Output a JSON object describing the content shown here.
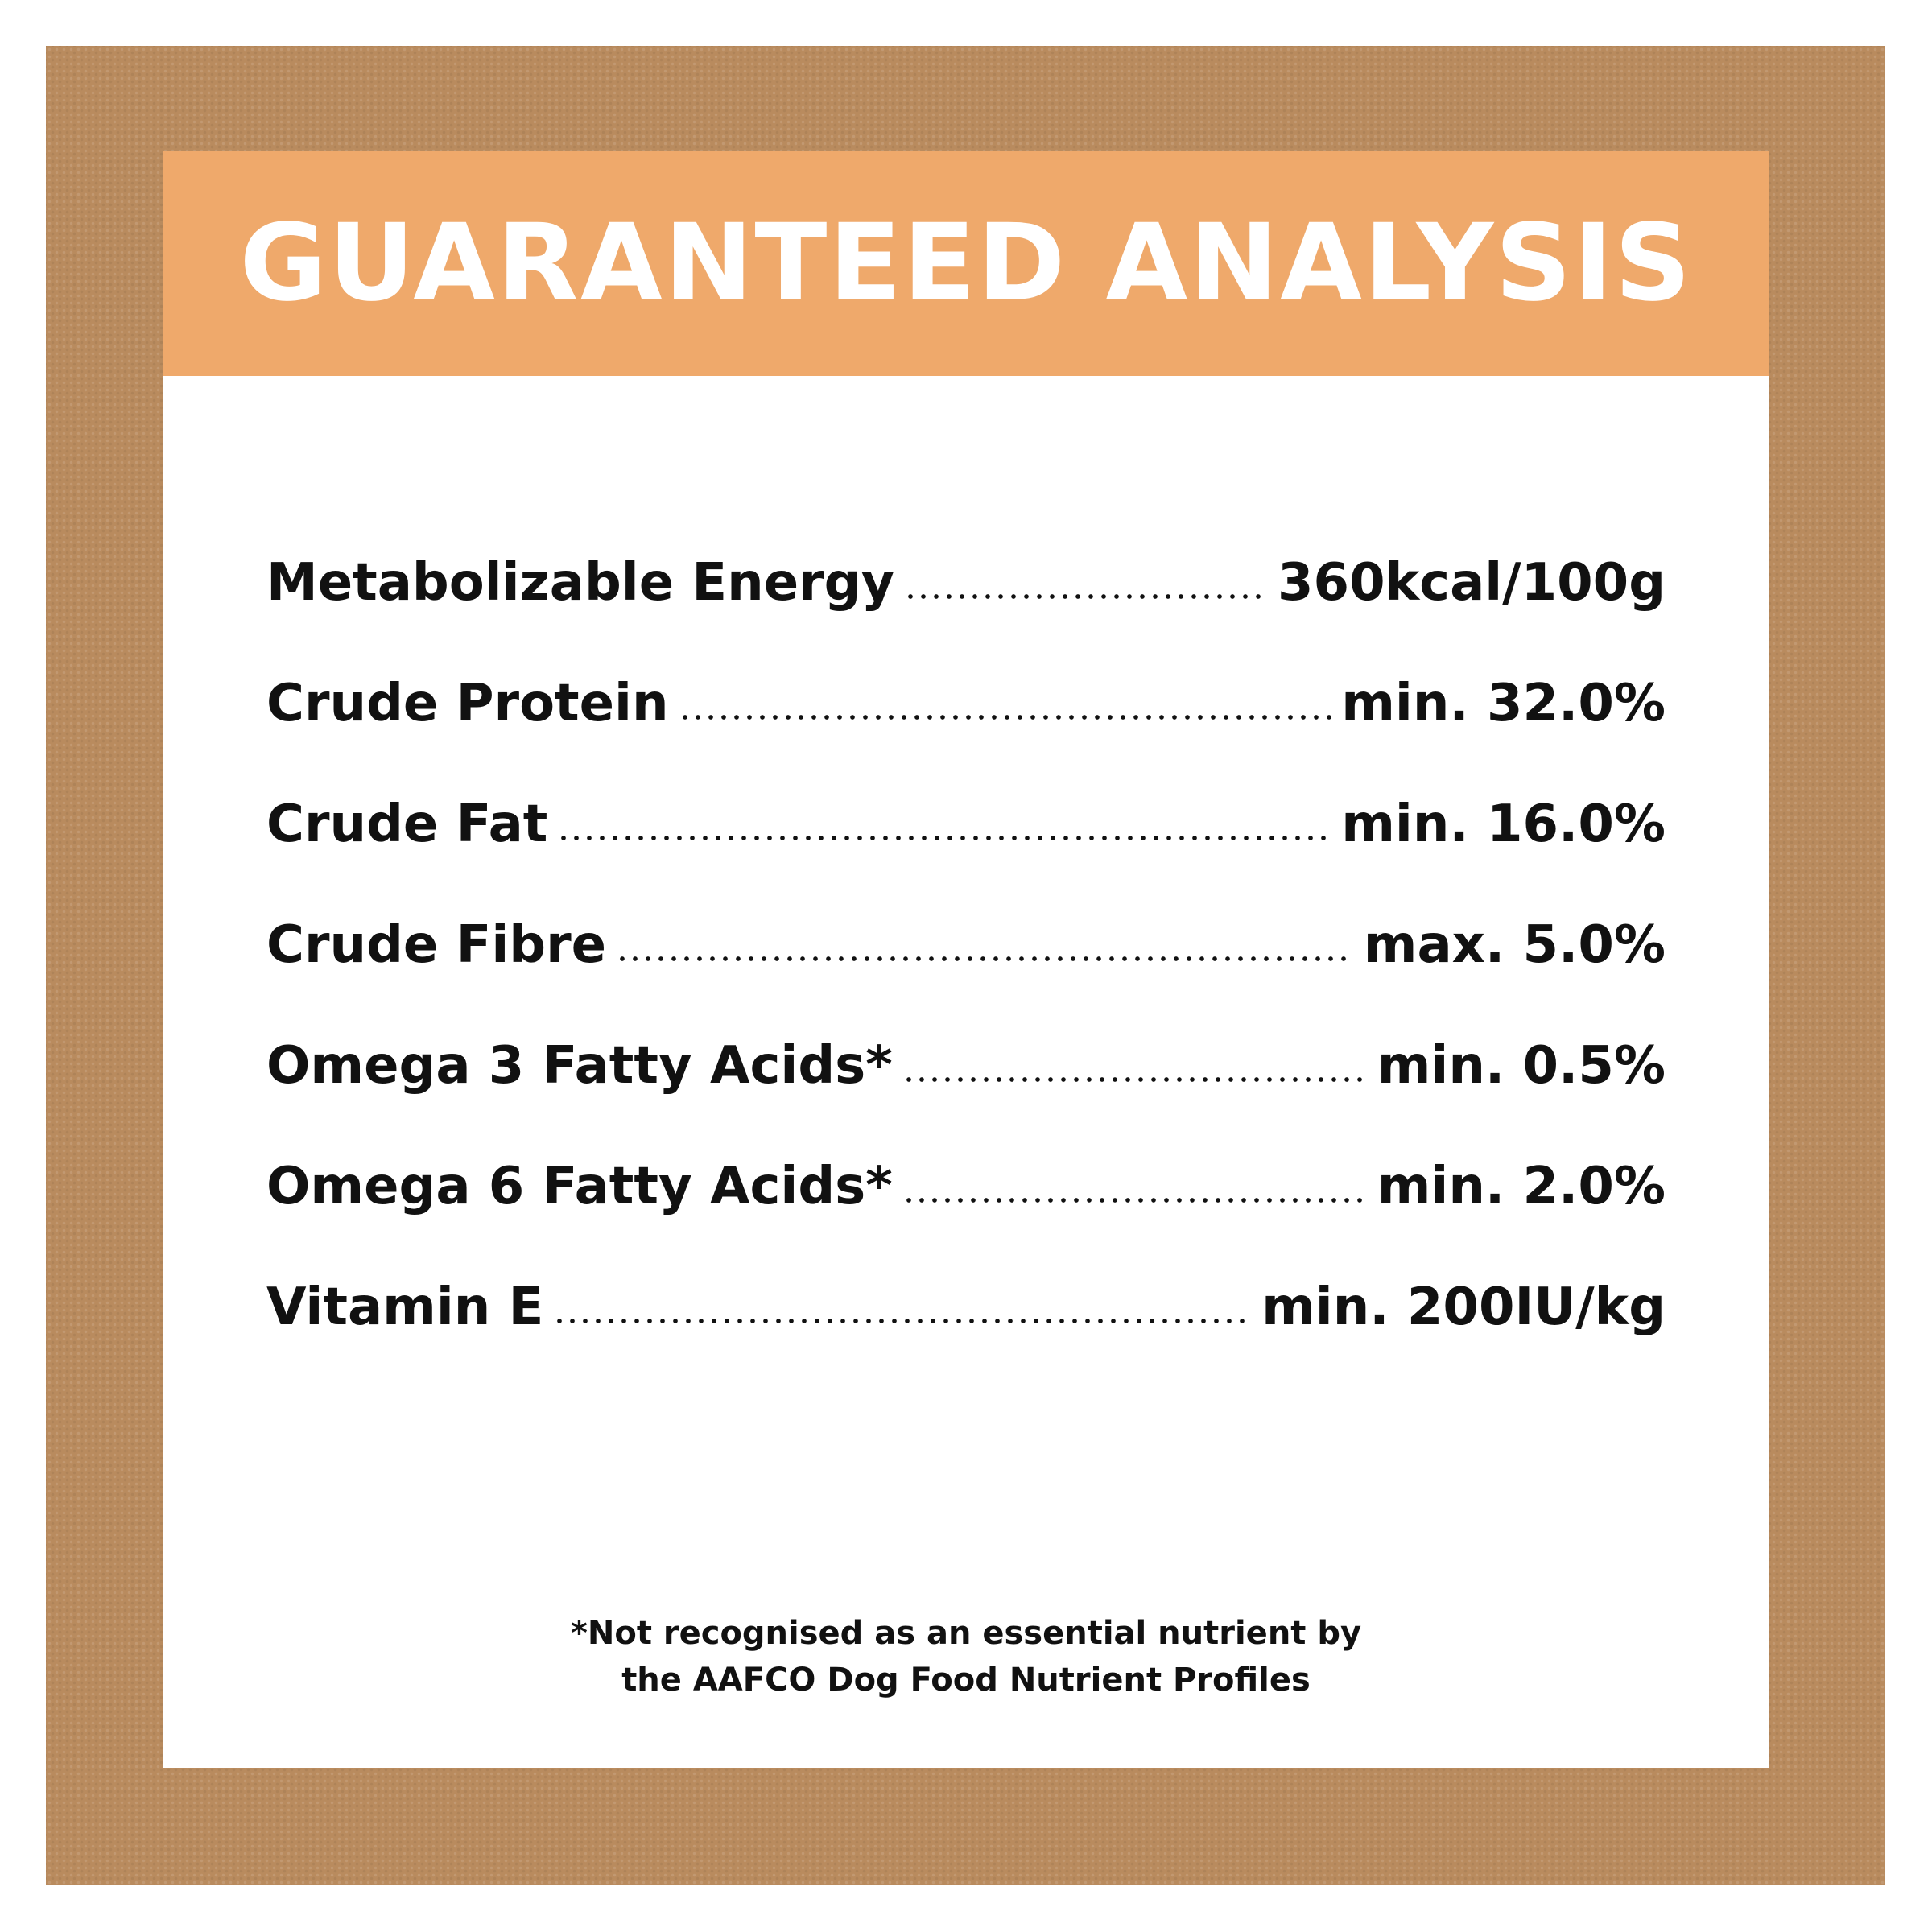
{
  "header": {
    "title": "GUARANTEED ANALYSIS"
  },
  "rows": [
    {
      "label": "Metabolizable Energy",
      "value": "360kcal/100g"
    },
    {
      "label": "Crude Protein",
      "value": "min. 32.0%"
    },
    {
      "label": "Crude Fat",
      "value": "min. 16.0%"
    },
    {
      "label": "Crude Fibre",
      "value": "max. 5.0%"
    },
    {
      "label": "Omega 3 Fatty Acids*",
      "value": "min. 0.5%"
    },
    {
      "label": "Omega 6 Fatty Acids*",
      "value": "min. 2.0%"
    },
    {
      "label": "Vitamin E",
      "value": "min. 200IU/kg"
    }
  ],
  "footnote": {
    "lines": [
      "*Not recognised as an essential nutrient by",
      "the AAFCO Dog Food Nutrient Profiles"
    ]
  }
}
